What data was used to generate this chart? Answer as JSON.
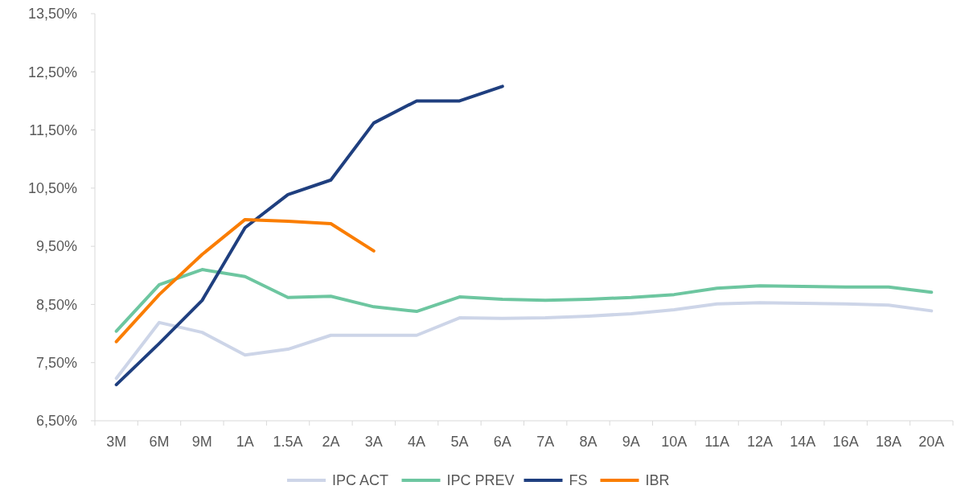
{
  "chart_data": {
    "type": "line",
    "categories": [
      "3M",
      "6M",
      "9M",
      "1A",
      "1.5A",
      "2A",
      "3A",
      "4A",
      "5A",
      "6A",
      "7A",
      "8A",
      "9A",
      "10A",
      "11A",
      "12A",
      "14A",
      "16A",
      "18A",
      "20A"
    ],
    "ylim": [
      6.5,
      13.5
    ],
    "yticks": [
      {
        "value": 6.5,
        "label": "6,50%"
      },
      {
        "value": 7.5,
        "label": "7,50%"
      },
      {
        "value": 8.5,
        "label": "8,50%"
      },
      {
        "value": 9.5,
        "label": "9,50%"
      },
      {
        "value": 10.5,
        "label": "10,50%"
      },
      {
        "value": 11.5,
        "label": "11,50%"
      },
      {
        "value": 12.5,
        "label": "12,50%"
      },
      {
        "value": 13.5,
        "label": "13,50%"
      }
    ],
    "legend": "bottom",
    "grid": false,
    "series": [
      {
        "name": "IPC ACT",
        "color": "#cdd5e8",
        "values": [
          7.23,
          8.19,
          8.02,
          7.63,
          7.73,
          7.97,
          7.97,
          7.97,
          8.27,
          8.26,
          8.27,
          8.3,
          8.34,
          8.41,
          8.51,
          8.53,
          8.52,
          8.51,
          8.49,
          8.39
        ]
      },
      {
        "name": "IPC PREV",
        "color": "#6dc6a0",
        "values": [
          8.04,
          8.84,
          9.1,
          8.98,
          8.62,
          8.64,
          8.46,
          8.38,
          8.63,
          8.59,
          8.57,
          8.59,
          8.62,
          8.67,
          8.78,
          8.82,
          8.81,
          8.8,
          8.8,
          8.71
        ]
      },
      {
        "name": "FS",
        "color": "#1f3f7f",
        "values": [
          7.12,
          7.83,
          8.57,
          9.82,
          10.39,
          10.64,
          11.62,
          12.0,
          12.0,
          12.25,
          null,
          null,
          null,
          null,
          null,
          null,
          null,
          null,
          null,
          null
        ]
      },
      {
        "name": "IBR",
        "color": "#fa7d00",
        "values": [
          7.86,
          8.67,
          9.36,
          9.96,
          9.93,
          9.89,
          9.42,
          null,
          null,
          null,
          null,
          null,
          null,
          null,
          null,
          null,
          null,
          null,
          null,
          null
        ]
      }
    ]
  }
}
